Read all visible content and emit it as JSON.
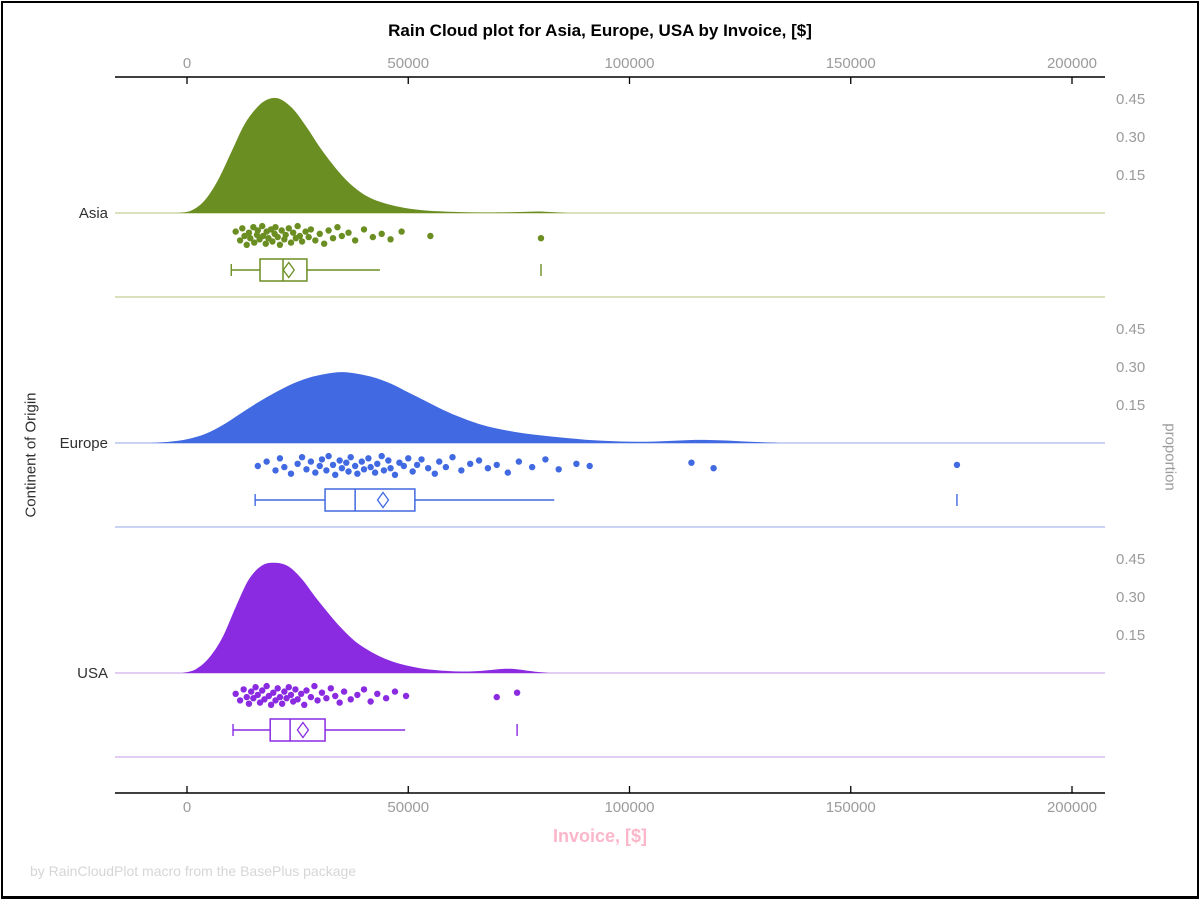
{
  "chart_data": {
    "type": "raincloud",
    "title": "Rain Cloud plot for Asia, Europe, USA by Invoice, [$]",
    "xlabel": "Invoice, [$]",
    "ylabel": "Continent of Origin",
    "ylabel_right": "proportion",
    "footer_note": "by RainCloudPlot macro from the BasePlus package",
    "x_ticks": [
      0,
      50000,
      100000,
      150000,
      200000
    ],
    "x_range": [
      -16300,
      207600
    ],
    "proportion_ticks": [
      0.45,
      0.3,
      0.15
    ],
    "legend": "none",
    "grid": "off",
    "groups": [
      {
        "name": "Asia",
        "color": "#6b8e23",
        "light_color": "#ccd7a6",
        "density": [
          [
            -2000,
            0
          ],
          [
            1000,
            0.01
          ],
          [
            4000,
            0.05
          ],
          [
            7000,
            0.13
          ],
          [
            10000,
            0.24
          ],
          [
            13000,
            0.35
          ],
          [
            16000,
            0.42
          ],
          [
            18500,
            0.45
          ],
          [
            21000,
            0.45
          ],
          [
            24000,
            0.41
          ],
          [
            27000,
            0.34
          ],
          [
            30000,
            0.26
          ],
          [
            33000,
            0.19
          ],
          [
            36000,
            0.13
          ],
          [
            39000,
            0.085
          ],
          [
            42000,
            0.055
          ],
          [
            46000,
            0.032
          ],
          [
            50000,
            0.018
          ],
          [
            54000,
            0.01
          ],
          [
            58000,
            0.006
          ],
          [
            63000,
            0.003
          ],
          [
            68000,
            0.002
          ],
          [
            73000,
            0.003
          ],
          [
            77000,
            0.005
          ],
          [
            80000,
            0.006
          ],
          [
            83000,
            0.003
          ],
          [
            86000,
            0
          ]
        ],
        "box": {
          "whisker_low": 10000,
          "q1": 16500,
          "median": 21700,
          "mean": 23000,
          "q3": 27100,
          "whisker_high": 43600,
          "outliers": [
            80000
          ]
        },
        "rain": [
          [
            11000,
            0.3
          ],
          [
            12000,
            0.7
          ],
          [
            12500,
            0.15
          ],
          [
            13000,
            0.5
          ],
          [
            13500,
            0.9
          ],
          [
            14000,
            0.35
          ],
          [
            14300,
            0.6
          ],
          [
            15000,
            0.1
          ],
          [
            15200,
            0.8
          ],
          [
            15800,
            0.45
          ],
          [
            16000,
            0.25
          ],
          [
            16400,
            0.65
          ],
          [
            17000,
            0.05
          ],
          [
            17200,
            0.5
          ],
          [
            17800,
            0.85
          ],
          [
            18000,
            0.3
          ],
          [
            18400,
            0.6
          ],
          [
            19000,
            0.2
          ],
          [
            19300,
            0.75
          ],
          [
            19800,
            0.4
          ],
          [
            20000,
            0.1
          ],
          [
            20500,
            0.55
          ],
          [
            21000,
            0.9
          ],
          [
            21400,
            0.25
          ],
          [
            22000,
            0.65
          ],
          [
            22300,
            0.45
          ],
          [
            23000,
            0.15
          ],
          [
            23500,
            0.8
          ],
          [
            24000,
            0.35
          ],
          [
            24600,
            0.6
          ],
          [
            25000,
            0.05
          ],
          [
            25500,
            0.5
          ],
          [
            26000,
            0.75
          ],
          [
            26800,
            0.3
          ],
          [
            27500,
            0.55
          ],
          [
            28000,
            0.2
          ],
          [
            29000,
            0.7
          ],
          [
            30000,
            0.4
          ],
          [
            31000,
            0.85
          ],
          [
            32000,
            0.25
          ],
          [
            33000,
            0.6
          ],
          [
            34000,
            0.1
          ],
          [
            35000,
            0.5
          ],
          [
            36500,
            0.35
          ],
          [
            38000,
            0.7
          ],
          [
            40000,
            0.2
          ],
          [
            42000,
            0.55
          ],
          [
            44000,
            0.4
          ],
          [
            46000,
            0.65
          ],
          [
            48500,
            0.3
          ],
          [
            55000,
            0.5
          ],
          [
            80000,
            0.6
          ]
        ]
      },
      {
        "name": "Europe",
        "color": "#4169e1",
        "light_color": "#b7c6f0",
        "density": [
          [
            -8000,
            0
          ],
          [
            -4000,
            0.005
          ],
          [
            0,
            0.015
          ],
          [
            4000,
            0.035
          ],
          [
            8000,
            0.07
          ],
          [
            12000,
            0.115
          ],
          [
            16000,
            0.16
          ],
          [
            20000,
            0.2
          ],
          [
            24000,
            0.235
          ],
          [
            28000,
            0.26
          ],
          [
            32000,
            0.275
          ],
          [
            35000,
            0.28
          ],
          [
            38000,
            0.275
          ],
          [
            42000,
            0.26
          ],
          [
            46000,
            0.235
          ],
          [
            50000,
            0.2
          ],
          [
            54000,
            0.165
          ],
          [
            58000,
            0.13
          ],
          [
            62000,
            0.1
          ],
          [
            66000,
            0.075
          ],
          [
            70000,
            0.057
          ],
          [
            74000,
            0.044
          ],
          [
            78000,
            0.034
          ],
          [
            82000,
            0.026
          ],
          [
            86000,
            0.019
          ],
          [
            90000,
            0.013
          ],
          [
            94000,
            0.009
          ],
          [
            98000,
            0.006
          ],
          [
            102000,
            0.005
          ],
          [
            106000,
            0.006
          ],
          [
            110000,
            0.009
          ],
          [
            114000,
            0.012
          ],
          [
            118000,
            0.012
          ],
          [
            122000,
            0.01
          ],
          [
            126000,
            0.006
          ],
          [
            130000,
            0.003
          ],
          [
            134000,
            0
          ]
        ],
        "box": {
          "whisker_low": 15400,
          "q1": 31200,
          "median": 38000,
          "mean": 44300,
          "q3": 51500,
          "whisker_high": 83000,
          "outliers": [
            174000
          ]
        },
        "rain": [
          [
            16000,
            0.5
          ],
          [
            18000,
            0.3
          ],
          [
            20000,
            0.7
          ],
          [
            21000,
            0.15
          ],
          [
            22000,
            0.55
          ],
          [
            23500,
            0.85
          ],
          [
            25000,
            0.4
          ],
          [
            26000,
            0.1
          ],
          [
            27000,
            0.65
          ],
          [
            28000,
            0.3
          ],
          [
            29000,
            0.8
          ],
          [
            30000,
            0.5
          ],
          [
            30500,
            0.2
          ],
          [
            31500,
            0.7
          ],
          [
            32000,
            0.05
          ],
          [
            33000,
            0.45
          ],
          [
            33500,
            0.9
          ],
          [
            34500,
            0.25
          ],
          [
            35000,
            0.6
          ],
          [
            36000,
            0.35
          ],
          [
            36500,
            0.75
          ],
          [
            37000,
            0.1
          ],
          [
            38000,
            0.5
          ],
          [
            38500,
            0.85
          ],
          [
            39500,
            0.3
          ],
          [
            40000,
            0.65
          ],
          [
            41000,
            0.15
          ],
          [
            41500,
            0.55
          ],
          [
            42500,
            0.8
          ],
          [
            43000,
            0.4
          ],
          [
            44000,
            0.05
          ],
          [
            44500,
            0.7
          ],
          [
            45500,
            0.25
          ],
          [
            46000,
            0.6
          ],
          [
            47000,
            0.9
          ],
          [
            48000,
            0.35
          ],
          [
            49000,
            0.5
          ],
          [
            50000,
            0.15
          ],
          [
            51000,
            0.75
          ],
          [
            52000,
            0.45
          ],
          [
            53000,
            0.2
          ],
          [
            54500,
            0.6
          ],
          [
            56000,
            0.85
          ],
          [
            57000,
            0.3
          ],
          [
            58500,
            0.55
          ],
          [
            60000,
            0.1
          ],
          [
            62000,
            0.7
          ],
          [
            64000,
            0.4
          ],
          [
            66000,
            0.25
          ],
          [
            68000,
            0.6
          ],
          [
            70000,
            0.45
          ],
          [
            72500,
            0.8
          ],
          [
            75000,
            0.3
          ],
          [
            78000,
            0.55
          ],
          [
            81000,
            0.2
          ],
          [
            84000,
            0.65
          ],
          [
            88000,
            0.4
          ],
          [
            91000,
            0.5
          ],
          [
            114000,
            0.35
          ],
          [
            119000,
            0.6
          ],
          [
            174000,
            0.45
          ]
        ]
      },
      {
        "name": "USA",
        "color": "#8a2be2",
        "light_color": "#d9beef",
        "density": [
          [
            -1000,
            0
          ],
          [
            2000,
            0.015
          ],
          [
            5000,
            0.06
          ],
          [
            8000,
            0.14
          ],
          [
            11000,
            0.26
          ],
          [
            14000,
            0.37
          ],
          [
            17000,
            0.425
          ],
          [
            20000,
            0.435
          ],
          [
            23000,
            0.42
          ],
          [
            26000,
            0.37
          ],
          [
            29000,
            0.3
          ],
          [
            32000,
            0.235
          ],
          [
            35000,
            0.175
          ],
          [
            38000,
            0.125
          ],
          [
            41000,
            0.09
          ],
          [
            44000,
            0.062
          ],
          [
            47000,
            0.042
          ],
          [
            50000,
            0.028
          ],
          [
            53000,
            0.018
          ],
          [
            56000,
            0.012
          ],
          [
            59000,
            0.008
          ],
          [
            62000,
            0.006
          ],
          [
            65000,
            0.007
          ],
          [
            68000,
            0.011
          ],
          [
            71000,
            0.016
          ],
          [
            74000,
            0.016
          ],
          [
            77000,
            0.009
          ],
          [
            80000,
            0.003
          ],
          [
            82000,
            0
          ]
        ],
        "box": {
          "whisker_low": 10400,
          "q1": 18800,
          "median": 23300,
          "mean": 26200,
          "q3": 31200,
          "whisker_high": 49300,
          "outliers": [
            74600
          ]
        },
        "rain": [
          [
            11000,
            0.4
          ],
          [
            12000,
            0.7
          ],
          [
            12800,
            0.2
          ],
          [
            13500,
            0.55
          ],
          [
            14000,
            0.85
          ],
          [
            14500,
            0.3
          ],
          [
            15000,
            0.6
          ],
          [
            15500,
            0.1
          ],
          [
            16000,
            0.45
          ],
          [
            16500,
            0.8
          ],
          [
            17000,
            0.25
          ],
          [
            17500,
            0.65
          ],
          [
            18000,
            0.05
          ],
          [
            18500,
            0.5
          ],
          [
            19000,
            0.9
          ],
          [
            19500,
            0.35
          ],
          [
            20000,
            0.7
          ],
          [
            20500,
            0.15
          ],
          [
            21000,
            0.55
          ],
          [
            21500,
            0.85
          ],
          [
            22000,
            0.3
          ],
          [
            22500,
            0.6
          ],
          [
            23000,
            0.1
          ],
          [
            23500,
            0.45
          ],
          [
            24000,
            0.75
          ],
          [
            24500,
            0.2
          ],
          [
            25000,
            0.65
          ],
          [
            25800,
            0.4
          ],
          [
            26500,
            0.9
          ],
          [
            27000,
            0.25
          ],
          [
            28000,
            0.55
          ],
          [
            28800,
            0.05
          ],
          [
            29500,
            0.7
          ],
          [
            30500,
            0.35
          ],
          [
            31500,
            0.6
          ],
          [
            32500,
            0.15
          ],
          [
            33500,
            0.5
          ],
          [
            34500,
            0.8
          ],
          [
            35500,
            0.3
          ],
          [
            37000,
            0.65
          ],
          [
            38500,
            0.45
          ],
          [
            40000,
            0.2
          ],
          [
            41500,
            0.75
          ],
          [
            43000,
            0.4
          ],
          [
            45000,
            0.6
          ],
          [
            47000,
            0.3
          ],
          [
            49500,
            0.5
          ],
          [
            70000,
            0.55
          ],
          [
            74600,
            0.35
          ]
        ]
      }
    ]
  },
  "colors": {
    "axis": "#000000",
    "tick_label": "#9b9b9b",
    "group_label": "#303030",
    "xlabel_pink": "#fbb6c9",
    "footer_gray": "#d6d6d6"
  }
}
